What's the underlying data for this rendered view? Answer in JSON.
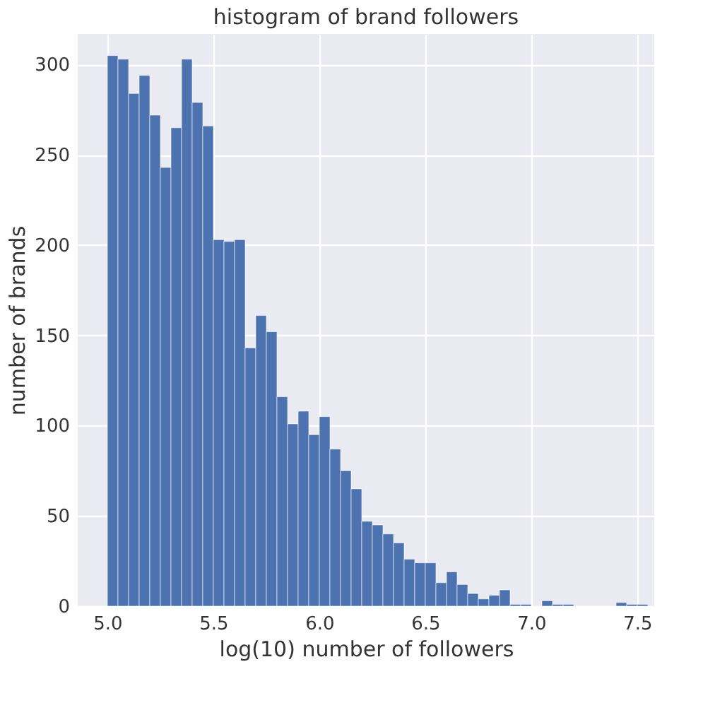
{
  "chart_data": {
    "type": "histogram",
    "title": "histogram of brand followers",
    "xlabel": "log(10) number of followers",
    "ylabel": "number of brands",
    "color": "#4c72b0",
    "bins": [
      5.0,
      5.05,
      5.1,
      5.15,
      5.2,
      5.25,
      5.3,
      5.35,
      5.4,
      5.45,
      5.5,
      5.55,
      5.6,
      5.65,
      5.7,
      5.75,
      5.8,
      5.85,
      5.9,
      5.95,
      6.0,
      6.05,
      6.1,
      6.15,
      6.2,
      6.25,
      6.3,
      6.35,
      6.4,
      6.45,
      6.5,
      6.55,
      6.6,
      6.65,
      6.7,
      6.75,
      6.8,
      6.85,
      6.9,
      6.95,
      7.0,
      7.05,
      7.1,
      7.15,
      7.2,
      7.25,
      7.3,
      7.35,
      7.4,
      7.45,
      7.5,
      7.55
    ],
    "values": [
      305,
      303,
      284,
      294,
      272,
      243,
      265,
      303,
      279,
      266,
      203,
      202,
      203,
      143,
      161,
      152,
      116,
      101,
      108,
      95,
      105,
      87,
      75,
      65,
      47,
      45,
      40,
      35,
      26,
      24,
      24,
      13,
      19,
      12,
      7,
      4,
      6,
      9,
      1,
      1,
      0,
      3,
      1,
      1,
      0,
      0,
      0,
      0,
      2,
      1,
      1
    ],
    "xlim": [
      4.86,
      7.58
    ],
    "xticks": [
      {
        "value": 5,
        "label": "5.0"
      },
      5.5,
      {
        "value": 6,
        "label": "6.0"
      },
      6.5,
      {
        "value": 7,
        "label": "7.0"
      },
      7.5
    ],
    "ylim": [
      0,
      317
    ],
    "yticks": [
      0,
      50,
      100,
      150,
      200,
      250,
      300
    ],
    "grid": true
  }
}
